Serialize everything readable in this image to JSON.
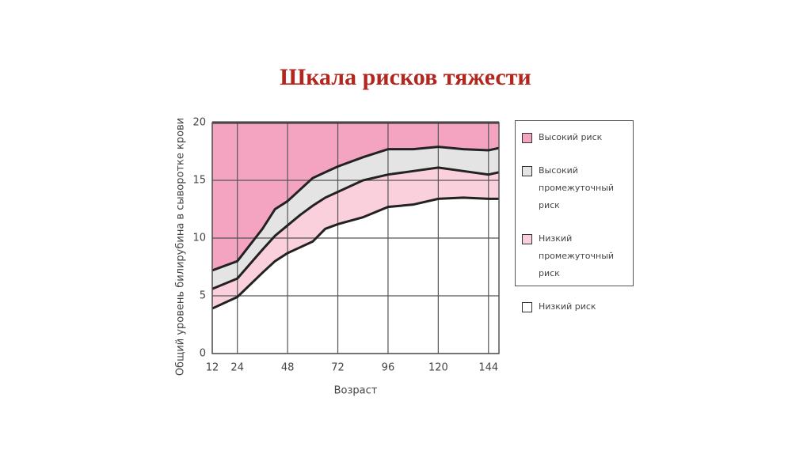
{
  "chart_data": {
    "type": "area",
    "stacked": true,
    "title": "Шкала рисков тяжести",
    "x_label": "Возраст",
    "y_label": "Общий уровень билирубина в сыворотке крови",
    "x": [
      12,
      24,
      36,
      42,
      48,
      54,
      60,
      66,
      72,
      84,
      96,
      108,
      120,
      132,
      144,
      149
    ],
    "series": [
      {
        "name": "Высокий риск",
        "color": "#f4a3c0",
        "values": [
          12.8,
          12.0,
          9.2,
          7.5,
          6.8,
          5.8,
          4.8,
          4.3,
          3.8,
          3.0,
          2.3,
          2.3,
          2.1,
          2.3,
          2.4,
          2.2
        ]
      },
      {
        "name": "Высокий промежуточный риск",
        "color": "#e4e4e4",
        "values": [
          1.6,
          1.5,
          1.8,
          2.3,
          2.1,
          2.2,
          2.4,
          2.2,
          2.2,
          2.0,
          2.2,
          1.9,
          1.8,
          1.9,
          2.1,
          2.1
        ]
      },
      {
        "name": "Низкий промежуточный риск",
        "color": "#fbd0dd",
        "values": [
          1.7,
          1.6,
          2.0,
          2.2,
          2.4,
          2.8,
          3.1,
          2.7,
          2.8,
          3.2,
          2.8,
          2.9,
          2.7,
          2.3,
          2.1,
          2.3
        ]
      },
      {
        "name": "Низкий риск",
        "color": "#ffffff",
        "values": [
          3.9,
          4.9,
          7.0,
          8.0,
          8.7,
          9.2,
          9.7,
          10.8,
          11.2,
          11.8,
          12.7,
          12.9,
          13.4,
          13.5,
          13.4,
          13.4
        ]
      }
    ],
    "xlim": [
      12,
      149
    ],
    "xticks": [
      12,
      24,
      48,
      72,
      96,
      120,
      144
    ],
    "ylim": [
      0,
      20
    ],
    "yticks": [
      0,
      5,
      10,
      15,
      20
    ],
    "grid": true,
    "legend": "right"
  }
}
